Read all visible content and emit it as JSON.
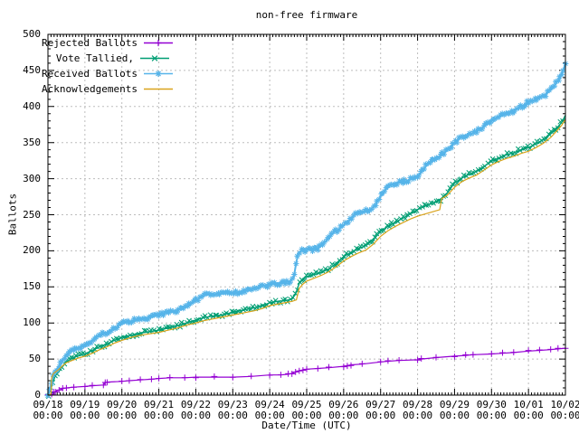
{
  "chart_data": {
    "type": "line",
    "title": "non-free firmware",
    "xlabel": "Date/Time (UTC)",
    "ylabel": "Ballots",
    "ylim": [
      0,
      500
    ],
    "y_major_step": 50,
    "y_minor_step": 10,
    "x_days_span": 14,
    "x_minor_per_day": 12,
    "grid": "dashed gray at each day and each 50 ballots",
    "legend_position": "top-left inside plot",
    "grid_color": "#bdbdbd",
    "axis_color": "#000000",
    "x_tick_labels": [
      "09/18 00:00",
      "09/19 00:00",
      "09/20 00:00",
      "09/21 00:00",
      "09/22 00:00",
      "09/23 00:00",
      "09/24 00:00",
      "09/25 00:00",
      "09/26 00:00",
      "09/27 00:00",
      "09/28 00:00",
      "09/29 00:00",
      "09/30 00:00",
      "10/01 00:00",
      "10/02 00:00"
    ],
    "y_tick_labels": [
      "0",
      "50",
      "100",
      "150",
      "200",
      "250",
      "300",
      "350",
      "400",
      "450",
      "500"
    ],
    "series": [
      {
        "name": "Rejected Ballots",
        "color": "#9400d3",
        "marker": "plus",
        "marker_step_px": 0,
        "line_width": 1.2,
        "points": [
          [
            0,
            0
          ],
          [
            0.1,
            2
          ],
          [
            0.15,
            4
          ],
          [
            0.2,
            5
          ],
          [
            0.3,
            7
          ],
          [
            0.4,
            9
          ],
          [
            0.5,
            10
          ],
          [
            0.7,
            11
          ],
          [
            1,
            12
          ],
          [
            1.2,
            13
          ],
          [
            1.5,
            14
          ],
          [
            1.55,
            17
          ],
          [
            1.6,
            18
          ],
          [
            2,
            19
          ],
          [
            2.2,
            20
          ],
          [
            2.5,
            21
          ],
          [
            2.8,
            22
          ],
          [
            3,
            23
          ],
          [
            3.3,
            24
          ],
          [
            3.7,
            24
          ],
          [
            4,
            25
          ],
          [
            4.5,
            25
          ],
          [
            5,
            25
          ],
          [
            5.5,
            26
          ],
          [
            6,
            28
          ],
          [
            6.3,
            28
          ],
          [
            6.5,
            29
          ],
          [
            6.6,
            30
          ],
          [
            6.7,
            32
          ],
          [
            6.8,
            34
          ],
          [
            6.9,
            35
          ],
          [
            7,
            36
          ],
          [
            7.3,
            37
          ],
          [
            7.6,
            38
          ],
          [
            8,
            40
          ],
          [
            8.1,
            41
          ],
          [
            8.2,
            42
          ],
          [
            8.5,
            43
          ],
          [
            9,
            46
          ],
          [
            9.2,
            47
          ],
          [
            9.5,
            48
          ],
          [
            10,
            49
          ],
          [
            10.1,
            50
          ],
          [
            10.5,
            52
          ],
          [
            11,
            54
          ],
          [
            11.3,
            55
          ],
          [
            11.5,
            56
          ],
          [
            12,
            57
          ],
          [
            12.3,
            58
          ],
          [
            12.6,
            59
          ],
          [
            13,
            61
          ],
          [
            13.3,
            62
          ],
          [
            13.6,
            63
          ],
          [
            13.8,
            64
          ],
          [
            14,
            65
          ]
        ]
      },
      {
        "name": "Vote Tallied,",
        "color": "#009e73",
        "marker": "cross",
        "marker_step_px": 2.6,
        "line_width": 1.4,
        "points": [
          [
            0,
            0
          ],
          [
            0.05,
            5
          ],
          [
            0.1,
            12
          ],
          [
            0.15,
            20
          ],
          [
            0.2,
            27
          ],
          [
            0.3,
            33
          ],
          [
            0.4,
            40
          ],
          [
            0.5,
            46
          ],
          [
            0.65,
            51
          ],
          [
            0.8,
            54
          ],
          [
            1,
            57
          ],
          [
            1.2,
            62
          ],
          [
            1.4,
            67
          ],
          [
            1.6,
            71
          ],
          [
            1.8,
            76
          ],
          [
            2,
            80
          ],
          [
            2.25,
            83
          ],
          [
            2.5,
            86
          ],
          [
            2.75,
            88
          ],
          [
            3,
            90
          ],
          [
            3.25,
            93
          ],
          [
            3.5,
            96
          ],
          [
            3.75,
            100
          ],
          [
            4,
            104
          ],
          [
            4.2,
            107
          ],
          [
            4.4,
            109
          ],
          [
            4.6,
            110
          ],
          [
            4.8,
            112
          ],
          [
            5,
            115
          ],
          [
            5.2,
            117
          ],
          [
            5.4,
            119
          ],
          [
            5.6,
            121
          ],
          [
            5.8,
            124
          ],
          [
            6,
            128
          ],
          [
            6.2,
            130
          ],
          [
            6.4,
            131
          ],
          [
            6.6,
            133
          ],
          [
            6.7,
            140
          ],
          [
            6.8,
            155
          ],
          [
            6.9,
            160
          ],
          [
            7,
            164
          ],
          [
            7.2,
            167
          ],
          [
            7.4,
            170
          ],
          [
            7.6,
            175
          ],
          [
            7.8,
            183
          ],
          [
            8,
            192
          ],
          [
            8.2,
            198
          ],
          [
            8.4,
            203
          ],
          [
            8.6,
            207
          ],
          [
            8.8,
            215
          ],
          [
            9,
            227
          ],
          [
            9.2,
            234
          ],
          [
            9.4,
            240
          ],
          [
            9.6,
            245
          ],
          [
            9.8,
            251
          ],
          [
            10,
            257
          ],
          [
            10.2,
            262
          ],
          [
            10.4,
            266
          ],
          [
            10.6,
            270
          ],
          [
            10.8,
            280
          ],
          [
            11,
            294
          ],
          [
            11.2,
            301
          ],
          [
            11.4,
            306
          ],
          [
            11.6,
            310
          ],
          [
            11.8,
            317
          ],
          [
            12,
            324
          ],
          [
            12.2,
            329
          ],
          [
            12.4,
            333
          ],
          [
            12.6,
            336
          ],
          [
            12.8,
            340
          ],
          [
            13,
            343
          ],
          [
            13.2,
            348
          ],
          [
            13.4,
            354
          ],
          [
            13.6,
            362
          ],
          [
            13.8,
            372
          ],
          [
            13.9,
            378
          ],
          [
            14,
            388
          ]
        ]
      },
      {
        "name": "Received Ballots",
        "color": "#56b4e9",
        "marker": "star",
        "marker_step_px": 2.0,
        "line_width": 2.0,
        "points": [
          [
            0,
            0
          ],
          [
            0.05,
            8
          ],
          [
            0.1,
            18
          ],
          [
            0.15,
            28
          ],
          [
            0.2,
            34
          ],
          [
            0.3,
            40
          ],
          [
            0.35,
            44
          ],
          [
            0.45,
            52
          ],
          [
            0.55,
            58
          ],
          [
            0.65,
            62
          ],
          [
            0.75,
            64
          ],
          [
            0.85,
            66
          ],
          [
            1,
            68
          ],
          [
            1.1,
            72
          ],
          [
            1.2,
            76
          ],
          [
            1.3,
            80
          ],
          [
            1.45,
            84
          ],
          [
            1.6,
            87
          ],
          [
            1.8,
            93
          ],
          [
            2,
            99
          ],
          [
            2.2,
            102
          ],
          [
            2.4,
            104
          ],
          [
            2.6,
            106
          ],
          [
            2.8,
            108
          ],
          [
            3,
            111
          ],
          [
            3.2,
            114
          ],
          [
            3.4,
            116
          ],
          [
            3.6,
            119
          ],
          [
            3.8,
            124
          ],
          [
            4,
            131
          ],
          [
            4.1,
            135
          ],
          [
            4.2,
            138
          ],
          [
            4.35,
            140
          ],
          [
            4.6,
            140
          ],
          [
            4.8,
            141
          ],
          [
            5,
            141
          ],
          [
            5.2,
            143
          ],
          [
            5.4,
            146
          ],
          [
            5.6,
            148
          ],
          [
            5.8,
            151
          ],
          [
            6,
            153
          ],
          [
            6.2,
            155
          ],
          [
            6.4,
            156
          ],
          [
            6.55,
            158
          ],
          [
            6.65,
            163
          ],
          [
            6.72,
            185
          ],
          [
            6.78,
            197
          ],
          [
            6.85,
            200
          ],
          [
            7,
            201
          ],
          [
            7.15,
            202
          ],
          [
            7.3,
            203
          ],
          [
            7.45,
            210
          ],
          [
            7.6,
            218
          ],
          [
            7.75,
            226
          ],
          [
            7.9,
            231
          ],
          [
            8,
            235
          ],
          [
            8.15,
            243
          ],
          [
            8.3,
            250
          ],
          [
            8.5,
            253
          ],
          [
            8.7,
            256
          ],
          [
            8.85,
            263
          ],
          [
            9,
            276
          ],
          [
            9.1,
            283
          ],
          [
            9.25,
            290
          ],
          [
            9.4,
            294
          ],
          [
            9.55,
            295
          ],
          [
            9.7,
            297
          ],
          [
            9.85,
            300
          ],
          [
            10,
            303
          ],
          [
            10.15,
            312
          ],
          [
            10.3,
            322
          ],
          [
            10.45,
            328
          ],
          [
            10.6,
            331
          ],
          [
            10.75,
            337
          ],
          [
            10.9,
            344
          ],
          [
            11,
            350
          ],
          [
            11.15,
            356
          ],
          [
            11.3,
            360
          ],
          [
            11.5,
            363
          ],
          [
            11.7,
            369
          ],
          [
            11.85,
            375
          ],
          [
            12,
            380
          ],
          [
            12.15,
            385
          ],
          [
            12.3,
            388
          ],
          [
            12.5,
            391
          ],
          [
            12.7,
            397
          ],
          [
            12.85,
            401
          ],
          [
            13,
            406
          ],
          [
            13.15,
            409
          ],
          [
            13.3,
            412
          ],
          [
            13.45,
            416
          ],
          [
            13.6,
            423
          ],
          [
            13.75,
            432
          ],
          [
            13.85,
            440
          ],
          [
            13.95,
            452
          ],
          [
            14,
            460
          ]
        ]
      },
      {
        "name": "Acknowledgements",
        "color": "#d9a31b",
        "marker": "none",
        "marker_step_px": -1,
        "line_width": 1.2,
        "points": [
          [
            0,
            0
          ],
          [
            0.08,
            1
          ],
          [
            0.1,
            24
          ],
          [
            0.15,
            30
          ],
          [
            0.2,
            32
          ],
          [
            0.3,
            36
          ],
          [
            0.4,
            41
          ],
          [
            0.5,
            45
          ],
          [
            0.65,
            48
          ],
          [
            0.8,
            51
          ],
          [
            1,
            54
          ],
          [
            1.2,
            58
          ],
          [
            1.4,
            63
          ],
          [
            1.6,
            67
          ],
          [
            1.8,
            72
          ],
          [
            2,
            76
          ],
          [
            2.25,
            80
          ],
          [
            2.5,
            83
          ],
          [
            2.75,
            85
          ],
          [
            3,
            87
          ],
          [
            3.25,
            90
          ],
          [
            3.5,
            93
          ],
          [
            3.75,
            97
          ],
          [
            4,
            100
          ],
          [
            4.2,
            103
          ],
          [
            4.4,
            105
          ],
          [
            4.6,
            107
          ],
          [
            4.8,
            109
          ],
          [
            5,
            111
          ],
          [
            5.2,
            113
          ],
          [
            5.4,
            115
          ],
          [
            5.6,
            117
          ],
          [
            5.8,
            120
          ],
          [
            6,
            124
          ],
          [
            6.2,
            126
          ],
          [
            6.4,
            128
          ],
          [
            6.6,
            130
          ],
          [
            6.72,
            132
          ],
          [
            6.8,
            148
          ],
          [
            6.9,
            154
          ],
          [
            7,
            158
          ],
          [
            7.2,
            162
          ],
          [
            7.4,
            166
          ],
          [
            7.6,
            171
          ],
          [
            7.8,
            178
          ],
          [
            8,
            186
          ],
          [
            8.2,
            192
          ],
          [
            8.4,
            197
          ],
          [
            8.6,
            201
          ],
          [
            8.8,
            209
          ],
          [
            9,
            220
          ],
          [
            9.2,
            228
          ],
          [
            9.4,
            234
          ],
          [
            9.6,
            239
          ],
          [
            9.8,
            244
          ],
          [
            10,
            248
          ],
          [
            10.2,
            251
          ],
          [
            10.4,
            254
          ],
          [
            10.6,
            257
          ],
          [
            10.65,
            272
          ],
          [
            10.8,
            277
          ],
          [
            11,
            288
          ],
          [
            11.2,
            296
          ],
          [
            11.4,
            301
          ],
          [
            11.6,
            305
          ],
          [
            11.8,
            312
          ],
          [
            12,
            319
          ],
          [
            12.2,
            324
          ],
          [
            12.4,
            328
          ],
          [
            12.6,
            331
          ],
          [
            12.8,
            335
          ],
          [
            13,
            338
          ],
          [
            13.2,
            343
          ],
          [
            13.4,
            349
          ],
          [
            13.6,
            357
          ],
          [
            13.8,
            368
          ],
          [
            13.9,
            374
          ],
          [
            14,
            382
          ]
        ]
      }
    ]
  }
}
